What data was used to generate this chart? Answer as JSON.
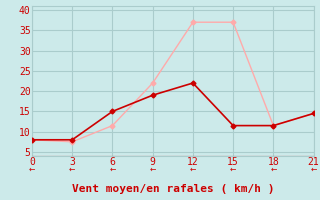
{
  "xlabel": "Vent moyen/en rafales ( km/h )",
  "background_color": "#cceaea",
  "grid_color": "#aacccc",
  "x_avg": [
    0,
    3,
    6,
    9,
    12,
    15,
    18,
    21
  ],
  "y_avg": [
    8,
    8,
    15,
    19,
    22,
    11.5,
    11.5,
    14.5
  ],
  "x_gust": [
    0,
    3,
    6,
    9,
    12,
    15,
    18,
    21
  ],
  "y_gust": [
    8,
    7.5,
    11.5,
    22,
    37,
    37,
    11.5,
    14.5
  ],
  "avg_color": "#cc0000",
  "gust_color": "#ffaaaa",
  "xlim": [
    0,
    21
  ],
  "ylim": [
    4,
    41
  ],
  "xticks": [
    0,
    3,
    6,
    9,
    12,
    15,
    18,
    21
  ],
  "yticks": [
    5,
    10,
    15,
    20,
    25,
    30,
    35,
    40
  ],
  "xlabel_fontsize": 8,
  "tick_fontsize": 7
}
